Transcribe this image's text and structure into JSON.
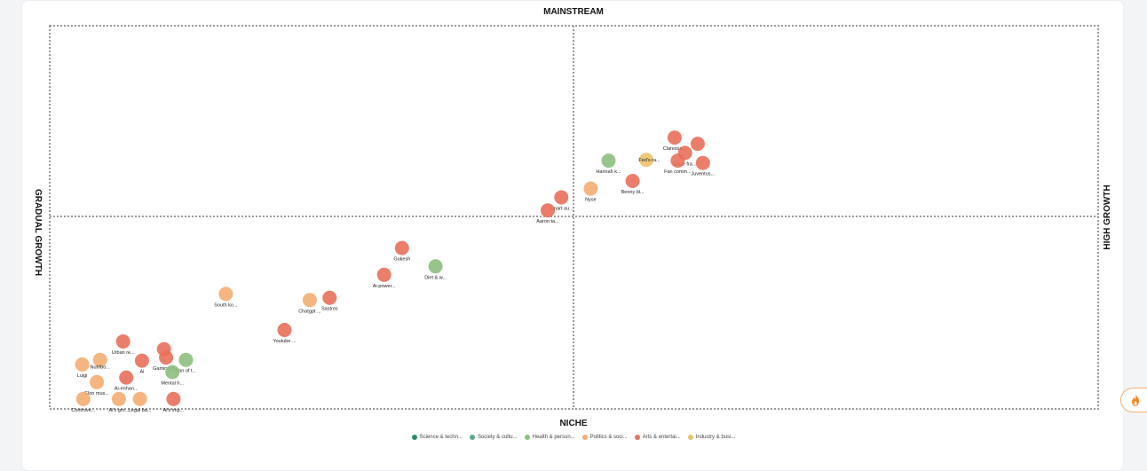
{
  "chart_data": {
    "type": "scatter",
    "quadrant_labels": {
      "top": "MAINSTREAM",
      "bottom": "NICHE",
      "left": "GRADUAL GROWTH",
      "right": "HIGH GROWTH"
    },
    "xlim": [
      0,
      100
    ],
    "ylim": [
      0,
      100
    ],
    "grid": false,
    "legend_position": "bottom",
    "categories": [
      {
        "name": "Science & techn...",
        "color": "#2e8b6e"
      },
      {
        "name": "Society & cultu...",
        "color": "#5fa98c"
      },
      {
        "name": "Health & person...",
        "color": "#8dbf7e"
      },
      {
        "name": "Politics & soci...",
        "color": "#f4ad72"
      },
      {
        "name": "Arts & entertai...",
        "color": "#e8705a"
      },
      {
        "name": "Industry & busi...",
        "color": "#edc36b"
      }
    ],
    "points": [
      {
        "label": "Claressa...",
        "x": 59.6,
        "y": 70.8,
        "cat": 4
      },
      {
        "label": "",
        "x": 61.8,
        "y": 69.2,
        "cat": 4
      },
      {
        "label": "Dave fra...",
        "x": 60.6,
        "y": 66.8,
        "cat": 4
      },
      {
        "label": "",
        "x": 56.9,
        "y": 65.0,
        "cat": 5
      },
      {
        "label": "Fed's ra...",
        "x": 57.2,
        "y": 65.0,
        "cat": -1
      },
      {
        "label": "Fan comm...",
        "x": 59.9,
        "y": 64.8,
        "cat": 4
      },
      {
        "label": "Juventus...",
        "x": 62.3,
        "y": 64.2,
        "cat": 4
      },
      {
        "label": "Hannah k...",
        "x": 53.3,
        "y": 64.8,
        "cat": 2
      },
      {
        "label": "Benny bl...",
        "x": 55.6,
        "y": 59.5,
        "cat": 4
      },
      {
        "label": "Nyse",
        "x": 51.6,
        "y": 57.5,
        "cat": 3
      },
      {
        "label": "Smart au...",
        "x": 48.8,
        "y": 55.2,
        "cat": 4
      },
      {
        "label": "Aaron ta...",
        "x": 47.5,
        "y": 51.8,
        "cat": 4
      },
      {
        "label": "Gukesh",
        "x": 33.6,
        "y": 42.0,
        "cat": 4
      },
      {
        "label": "Diet & w...",
        "x": 36.8,
        "y": 37.2,
        "cat": 2
      },
      {
        "label": "Ai-power...",
        "x": 31.9,
        "y": 35.0,
        "cat": 4
      },
      {
        "label": "Sastros",
        "x": 26.7,
        "y": 29.0,
        "cat": 4
      },
      {
        "label": "Chatgpt ...",
        "x": 24.8,
        "y": 28.4,
        "cat": 3
      },
      {
        "label": "South ko...",
        "x": 16.8,
        "y": 30.0,
        "cat": 3
      },
      {
        "label": "Youtube ...",
        "x": 22.4,
        "y": 20.6,
        "cat": 4
      },
      {
        "label": "Urban re...",
        "x": 7.0,
        "y": 17.6,
        "cat": 4
      },
      {
        "label": "",
        "x": 10.9,
        "y": 15.6,
        "cat": 4
      },
      {
        "label": "Gaming m...",
        "x": 11.1,
        "y": 13.4,
        "cat": 4
      },
      {
        "label": "Ai",
        "x": 8.8,
        "y": 12.6,
        "cat": 4
      },
      {
        "label": "Van of t...",
        "x": 13.0,
        "y": 12.8,
        "cat": 2
      },
      {
        "label": "",
        "x": 4.8,
        "y": 12.8,
        "cat": 3
      },
      {
        "label": "Luigi",
        "x": 3.1,
        "y": 11.6,
        "cat": 3
      },
      {
        "label": "Nutribo...",
        "x": 4.8,
        "y": 11.0,
        "cat": -1
      },
      {
        "label": "Mental h...",
        "x": 11.7,
        "y": 9.6,
        "cat": 2
      },
      {
        "label": "Ai-enhan...",
        "x": 7.3,
        "y": 8.2,
        "cat": 4
      },
      {
        "label": "Elon mus...",
        "x": 4.5,
        "y": 7.0,
        "cat": 3
      },
      {
        "label": "Controve...",
        "x": 3.2,
        "y": 2.6,
        "cat": 3
      },
      {
        "label": "Ai's gro...",
        "x": 6.6,
        "y": 2.6,
        "cat": 3
      },
      {
        "label": "Legal ba...",
        "x": 8.6,
        "y": 2.6,
        "cat": 3
      },
      {
        "label": "Ai's imp...",
        "x": 11.8,
        "y": 2.6,
        "cat": 4
      }
    ]
  }
}
